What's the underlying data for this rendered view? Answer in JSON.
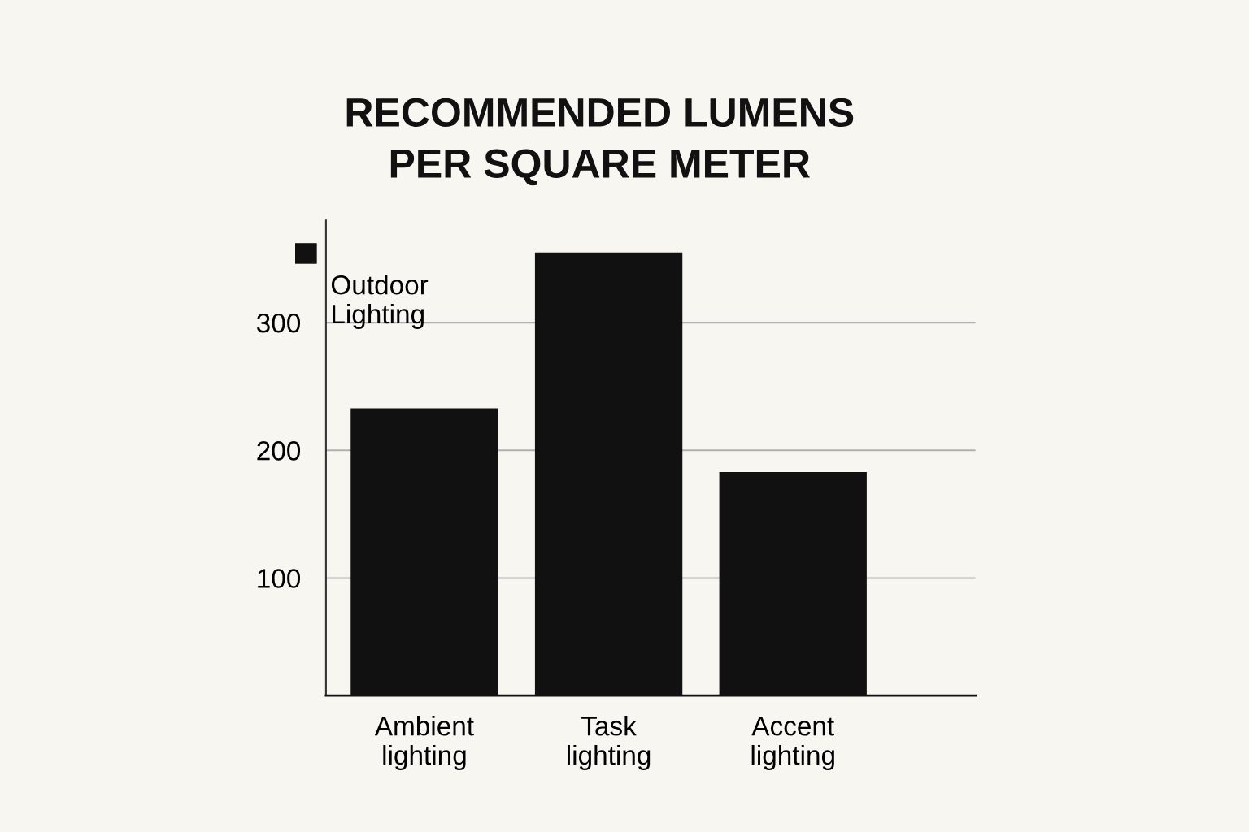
{
  "chart_data": {
    "type": "bar",
    "title": "RECOMMENDED LUMENS\nPER SQUARE METER",
    "categories": [
      "Ambient\nlighting",
      "Task\nlighting",
      "Accent\nlighting"
    ],
    "series": [
      {
        "name": "Outdoor\nLighting",
        "color": "#111111",
        "values": [
          233,
          355,
          183
        ]
      }
    ],
    "ylim": [
      8,
      380
    ],
    "yticks": [
      100,
      200,
      300
    ],
    "grid": "y",
    "legend": "top left"
  }
}
